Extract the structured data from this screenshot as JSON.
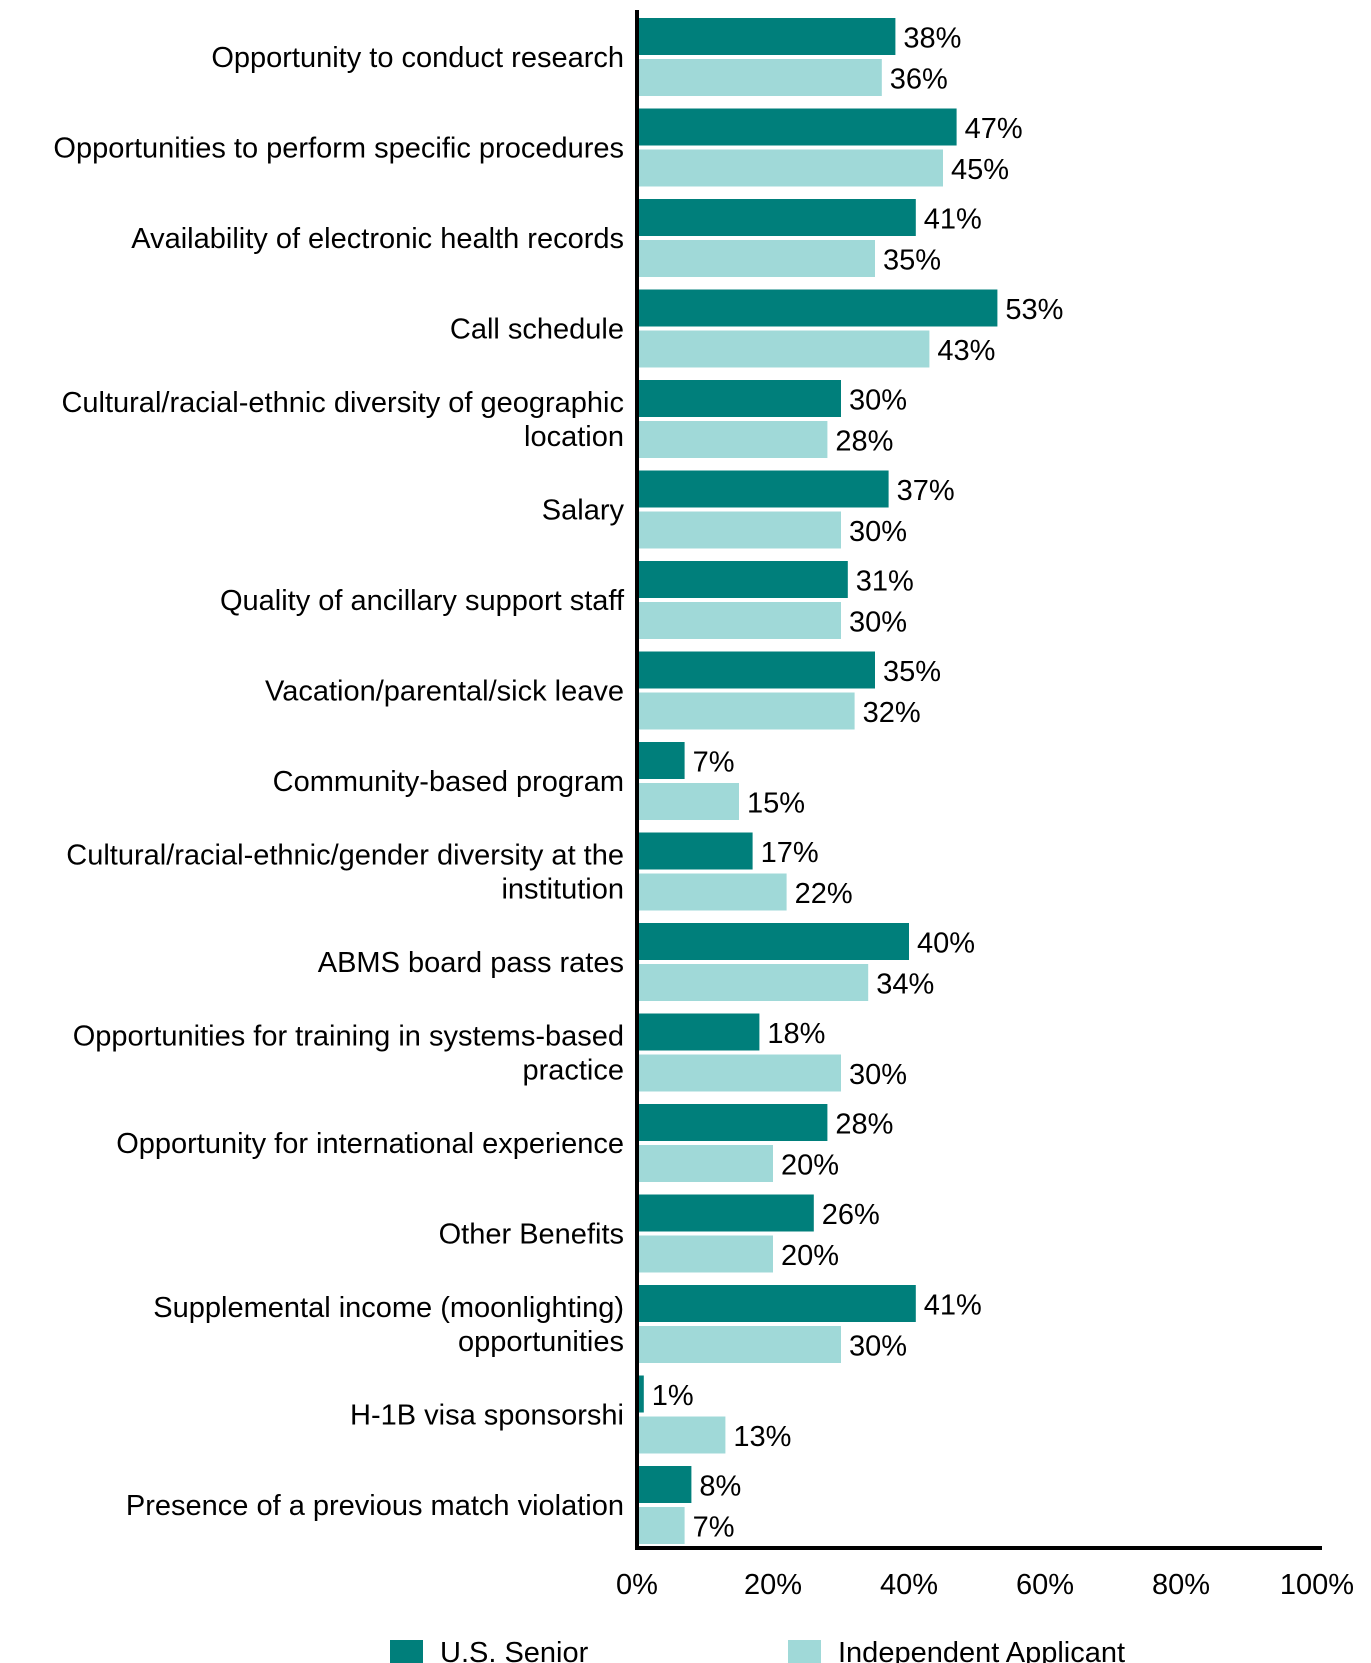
{
  "chart_data": {
    "type": "bar",
    "orientation": "horizontal",
    "title": "",
    "xlabel": "",
    "ylabel": "",
    "xlim": [
      0,
      100
    ],
    "x_ticks": [
      "0%",
      "20%",
      "40%",
      "60%",
      "80%",
      "100%"
    ],
    "x_tick_values": [
      0,
      20,
      40,
      60,
      80,
      100
    ],
    "grid": false,
    "legend_position": "bottom",
    "categories": [
      [
        "Opportunity to conduct research"
      ],
      [
        "Opportunities to perform specific procedures"
      ],
      [
        "Availability of electronic health records"
      ],
      [
        "Call schedule"
      ],
      [
        "Cultural/racial-ethnic diversity of geographic",
        "location"
      ],
      [
        "Salary"
      ],
      [
        "Quality of ancillary support staff"
      ],
      [
        "Vacation/parental/sick leave"
      ],
      [
        "Community-based program"
      ],
      [
        "Cultural/racial-ethnic/gender diversity at the",
        "institution"
      ],
      [
        "ABMS board pass rates"
      ],
      [
        "Opportunities for training in systems-based",
        "practice"
      ],
      [
        "Opportunity for international experience"
      ],
      [
        "Other Benefits"
      ],
      [
        "Supplemental income (moonlighting)",
        "opportunities"
      ],
      [
        "H-1B visa sponsorshi"
      ],
      [
        "Presence of a previous match violation"
      ]
    ],
    "series": [
      {
        "name": "U.S. Senior",
        "color": "#007f7b",
        "values": [
          38,
          47,
          41,
          53,
          30,
          37,
          31,
          35,
          7,
          17,
          40,
          18,
          28,
          26,
          41,
          1,
          8
        ],
        "labels": [
          "38%",
          "47%",
          "41%",
          "53%",
          "30%",
          "37%",
          "31%",
          "35%",
          "7%",
          "17%",
          "40%",
          "18%",
          "28%",
          "26%",
          "41%",
          "1%",
          "8%"
        ]
      },
      {
        "name": "Independent Applicant",
        "color": "#a0d9d8",
        "values": [
          36,
          45,
          35,
          43,
          28,
          30,
          30,
          32,
          15,
          22,
          34,
          30,
          20,
          20,
          30,
          13,
          7
        ],
        "labels": [
          "36%",
          "45%",
          "35%",
          "43%",
          "28%",
          "30%",
          "30%",
          "32%",
          "15%",
          "22%",
          "34%",
          "30%",
          "20%",
          "20%",
          "30%",
          "13%",
          "7%"
        ]
      }
    ]
  }
}
